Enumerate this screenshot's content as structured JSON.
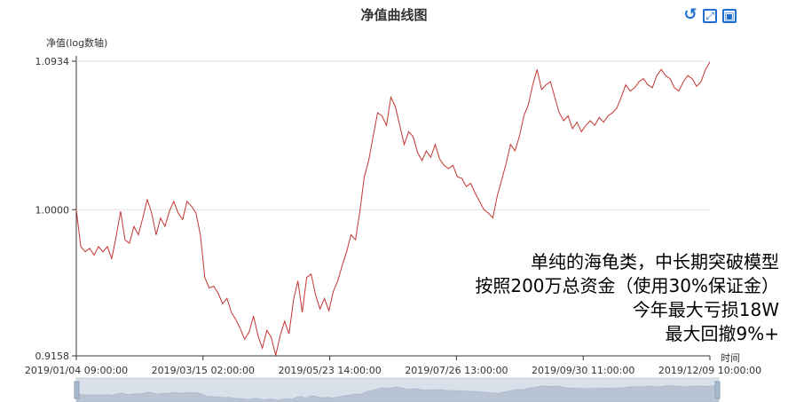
{
  "chart_data": {
    "type": "line",
    "title": "净值曲线图",
    "ylabel": "净值(log数轴)",
    "xlabel": "时间",
    "y_scale": "log",
    "ylim": [
      0.9158,
      1.0934
    ],
    "y_ticks": [
      "0.9158",
      "1.0000",
      "1.0934"
    ],
    "y_tick_values": [
      0.9158,
      1.0,
      1.0934
    ],
    "x_ticks": [
      "2019/01/04 09:00:00",
      "2019/03/15 02:00:00",
      "2019/05/23 14:00:00",
      "2019/07/26 13:00:00",
      "2019/09/30 11:00:00",
      "2019/12/09 10:00:00"
    ],
    "grid": "horizontal",
    "color": "#c23531",
    "series": [
      {
        "values": [
          1.0,
          0.978,
          0.975,
          0.977,
          0.973,
          0.978,
          0.975,
          0.978,
          0.971,
          0.984,
          0.999,
          0.982,
          0.98,
          0.99,
          0.985,
          0.995,
          1.006,
          0.998,
          0.985,
          0.995,
          0.99,
          0.999,
          1.005,
          0.998,
          0.994,
          1.005,
          1.002,
          0.998,
          0.985,
          0.96,
          0.954,
          0.955,
          0.951,
          0.945,
          0.948,
          0.94,
          0.936,
          0.931,
          0.925,
          0.929,
          0.938,
          0.927,
          0.92,
          0.93,
          0.926,
          0.916,
          0.927,
          0.935,
          0.928,
          0.947,
          0.958,
          0.94,
          0.96,
          0.962,
          0.95,
          0.942,
          0.948,
          0.941,
          0.952,
          0.958,
          0.967,
          0.975,
          0.985,
          0.982,
          0.999,
          1.02,
          1.03,
          1.045,
          1.06,
          1.058,
          1.052,
          1.07,
          1.064,
          1.052,
          1.04,
          1.048,
          1.045,
          1.035,
          1.03,
          1.036,
          1.032,
          1.04,
          1.031,
          1.027,
          1.025,
          1.027,
          1.02,
          1.019,
          1.014,
          1.016,
          1.01,
          1.005,
          1.0,
          0.998,
          0.995,
          1.008,
          1.018,
          1.028,
          1.04,
          1.036,
          1.045,
          1.058,
          1.065,
          1.078,
          1.088,
          1.075,
          1.078,
          1.08,
          1.07,
          1.06,
          1.055,
          1.058,
          1.05,
          1.054,
          1.048,
          1.052,
          1.055,
          1.052,
          1.057,
          1.054,
          1.058,
          1.06,
          1.063,
          1.07,
          1.078,
          1.074,
          1.076,
          1.08,
          1.082,
          1.078,
          1.076,
          1.084,
          1.088,
          1.084,
          1.082,
          1.076,
          1.074,
          1.08,
          1.084,
          1.082,
          1.077,
          1.08,
          1.088,
          1.093
        ]
      }
    ],
    "annotations": [
      "单纯的海龟类，中长期突破模型",
      "按照200万总资金（使用30%保证金）",
      "今年最大亏损18W",
      "最大回撤9%+"
    ]
  },
  "toolbox": {
    "icons": [
      "restore-icon",
      "zoom-icon",
      "save-image-icon"
    ],
    "accent": "#1f6fd1"
  }
}
